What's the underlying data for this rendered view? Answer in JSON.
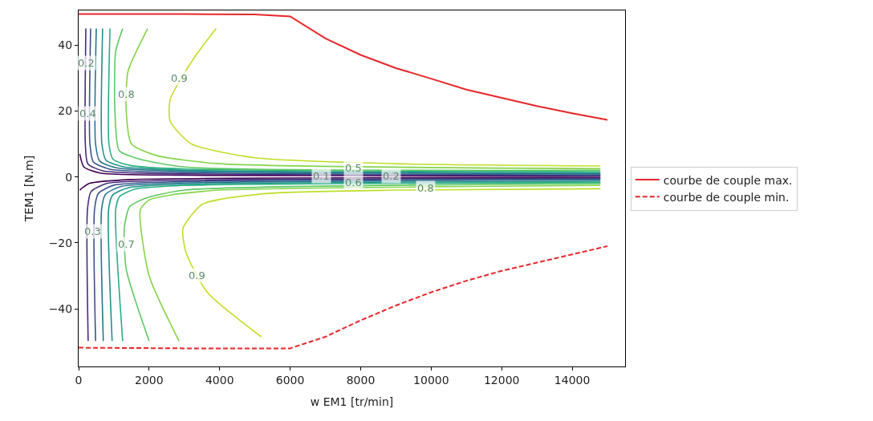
{
  "chart_data": {
    "type": "line",
    "xlabel": "w EM1 [tr/min]",
    "ylabel": "TEM1 [N.m]",
    "xlim": [
      0,
      15500
    ],
    "ylim": [
      -57.5,
      50.5
    ],
    "xticks": [
      0,
      2000,
      4000,
      6000,
      8000,
      10000,
      12000,
      14000
    ],
    "yticks": [
      -40,
      -20,
      0,
      20,
      40
    ],
    "legend": "right",
    "marker": "none",
    "series": [
      {
        "name": "courbe de couple max.",
        "color": "#e8262a",
        "line_style": "solid",
        "x": [
          0,
          3000,
          5000,
          6000,
          7000,
          8000,
          9000,
          10000,
          11000,
          12000,
          13000,
          14000,
          15000
        ],
        "values": [
          49.4,
          49.4,
          49.3,
          48.7,
          42,
          37,
          33,
          29.8,
          26.5,
          24,
          21.5,
          19.3,
          17.3
        ]
      },
      {
        "name": "courbe de couple min.",
        "color": "#e8262a",
        "line_style": "dashed",
        "x": [
          0,
          3000,
          5000,
          6000,
          7000,
          8000,
          9000,
          10000,
          11000,
          12000,
          13000,
          14000,
          15000
        ],
        "values": [
          -51.8,
          -52,
          -52,
          -52,
          -48.5,
          -43.5,
          -39,
          -35,
          -31.5,
          -28.5,
          -26,
          -23.5,
          -21
        ]
      },
      {
        "color": "#440154",
        "x": [
          30,
          150,
          600,
          3000,
          14800
        ],
        "values": [
          7,
          3,
          1.2,
          0.5,
          0.2
        ]
      },
      {
        "color": "#472d7b",
        "x": [
          205,
          190,
          260,
          700,
          3000,
          14800
        ],
        "values": [
          45,
          10,
          4,
          1.8,
          0.9,
          0.4
        ]
      },
      {
        "color": "#3b528b",
        "x": [
          340,
          320,
          420,
          900,
          3000,
          14800
        ],
        "values": [
          45,
          10,
          4.5,
          2.3,
          1.3,
          0.6
        ]
      },
      {
        "color": "#2c728e",
        "x": [
          500,
          480,
          600,
          1100,
          3000,
          14800
        ],
        "values": [
          45,
          10,
          4.8,
          2.7,
          1.7,
          0.9
        ]
      },
      {
        "color": "#21918c",
        "x": [
          680,
          660,
          780,
          1300,
          3000,
          14800
        ],
        "values": [
          45,
          10,
          5,
          3,
          2,
          1.2
        ]
      },
      {
        "color": "#28ae80",
        "x": [
          890,
          860,
          980,
          1500,
          3000,
          14800
        ],
        "values": [
          45,
          10,
          5.3,
          3.4,
          2.4,
          1.6
        ]
      },
      {
        "color": "#5ec962",
        "x": [
          1250,
          1050,
          1030,
          1150,
          1700,
          3000,
          14800
        ],
        "values": [
          45,
          38,
          20,
          8,
          5.5,
          3,
          2
        ]
      },
      {
        "color": "#85d44a",
        "x": [
          1960,
          1400,
          1350,
          1500,
          2200,
          4000,
          14800
        ],
        "values": [
          45,
          32,
          20,
          10,
          6.5,
          4,
          2.5
        ]
      },
      {
        "color": "#bddf26",
        "x": [
          3900,
          3300,
          2600,
          2600,
          3200,
          5000,
          9000,
          14800
        ],
        "values": [
          45,
          36.5,
          23.6,
          16.8,
          10,
          5.8,
          4,
          3.3
        ]
      },
      {
        "color": "#440154",
        "x": [
          30,
          300,
          1500,
          14800
        ],
        "values": [
          -4,
          -2,
          -0.8,
          -0.2
        ]
      },
      {
        "color": "#472d7b",
        "x": [
          270,
          250,
          350,
          800,
          3000,
          14800
        ],
        "values": [
          -49.8,
          -10,
          -4.5,
          -2,
          -1,
          -0.4
        ]
      },
      {
        "color": "#3b528b",
        "x": [
          480,
          450,
          560,
          1000,
          3000,
          14800
        ],
        "values": [
          -49.8,
          -10,
          -5,
          -2.5,
          -1.4,
          -0.6
        ]
      },
      {
        "color": "#2c728e",
        "x": [
          700,
          650,
          760,
          1200,
          3000,
          14800
        ],
        "values": [
          -49.8,
          -10,
          -5.3,
          -2.9,
          -1.8,
          -0.9
        ]
      },
      {
        "color": "#21918c",
        "x": [
          950,
          850,
          960,
          1400,
          3000,
          14800
        ],
        "values": [
          -49.8,
          -10,
          -5.6,
          -3.3,
          -2.2,
          -1.3
        ]
      },
      {
        "color": "#28ae80",
        "x": [
          1250,
          1050,
          1160,
          1600,
          3000,
          14800
        ],
        "values": [
          -49.8,
          -10,
          -6,
          -3.7,
          -2.6,
          -1.7
        ]
      },
      {
        "color": "#5ec962",
        "x": [
          2000,
          1350,
          1300,
          1450,
          1900,
          3000,
          14800
        ],
        "values": [
          -49.8,
          -28,
          -15,
          -9,
          -6.5,
          -4,
          -2.1
        ]
      },
      {
        "color": "#85d44a",
        "x": [
          2850,
          2000,
          1750,
          2000,
          2600,
          4000,
          14800
        ],
        "values": [
          -49.8,
          -30,
          -10,
          -7,
          -5.5,
          -4,
          -2.6
        ]
      },
      {
        "color": "#bddf26",
        "x": [
          5180,
          3650,
          3050,
          2960,
          3510,
          5240,
          9000,
          14800
        ],
        "values": [
          -48.5,
          -35,
          -23,
          -15.6,
          -8.3,
          -5.1,
          -4,
          -3.6
        ]
      }
    ],
    "annotations": [
      {
        "text": "0.2",
        "x": 205,
        "y": 34.6
      },
      {
        "text": "0.4",
        "x": 270,
        "y": 19.3
      },
      {
        "text": "0.8",
        "x": 1350,
        "y": 25
      },
      {
        "text": "0.9",
        "x": 2850,
        "y": 30
      },
      {
        "text": "0.3",
        "x": 390,
        "y": -16.6
      },
      {
        "text": "0.7",
        "x": 1350,
        "y": -20.5
      },
      {
        "text": "0.9",
        "x": 3350,
        "y": -30
      },
      {
        "text": "0.1",
        "x": 6880,
        "y": 0.2
      },
      {
        "text": "0.5",
        "x": 7800,
        "y": 2.7
      },
      {
        "text": "0.6",
        "x": 7800,
        "y": -1.7
      },
      {
        "text": "0.2",
        "x": 8870,
        "y": 0.2
      },
      {
        "text": "0.8",
        "x": 9850,
        "y": -3.4
      }
    ]
  }
}
